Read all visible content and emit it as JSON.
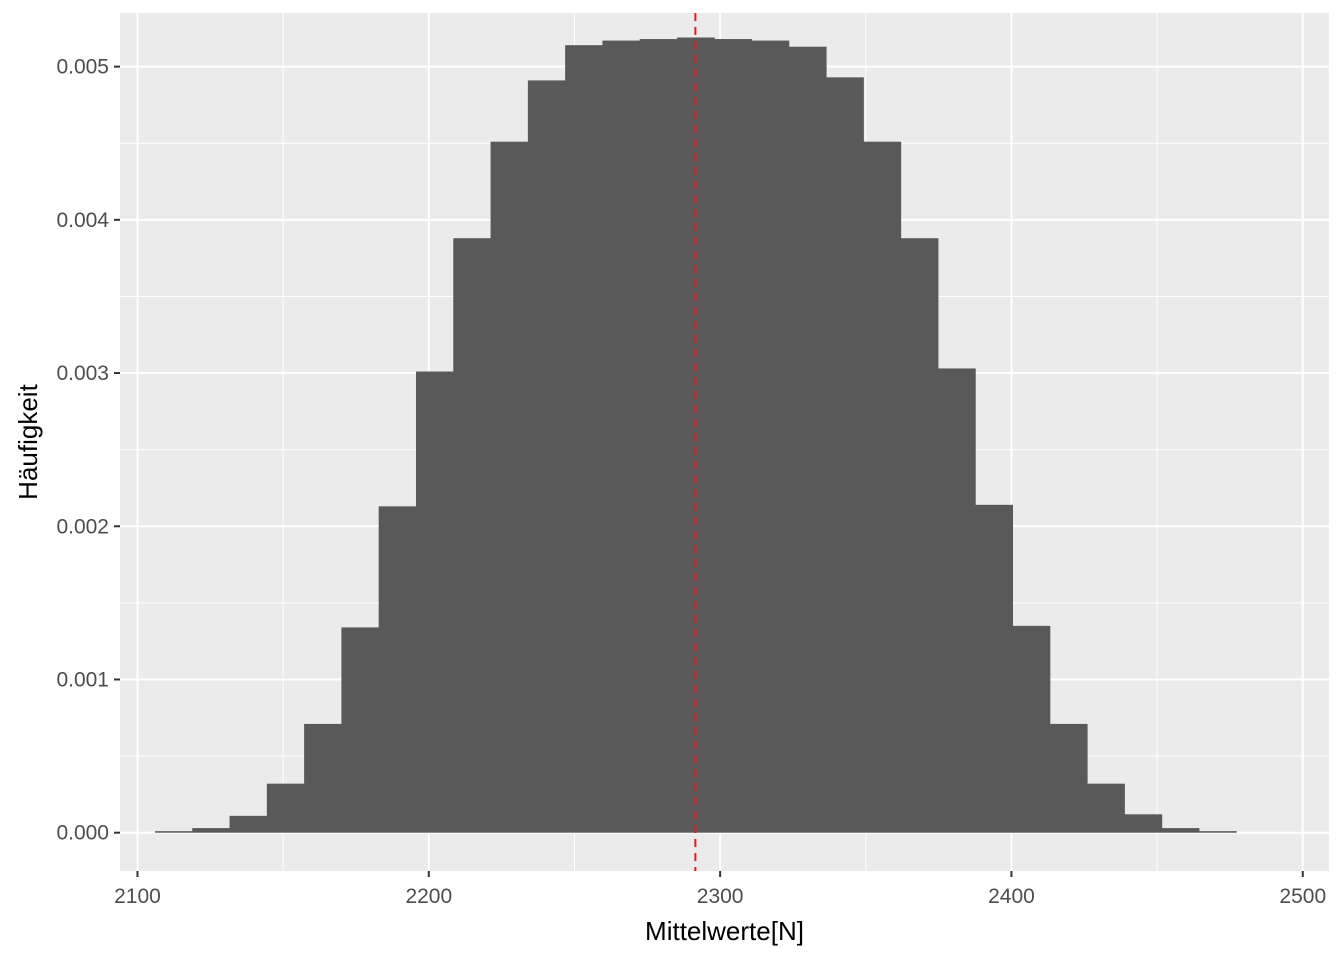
{
  "chart_data": {
    "type": "bar",
    "subtype": "histogram",
    "title": "",
    "xlabel": "Mittelwerte[N]",
    "ylabel": "Häufigkeit",
    "xlim": [
      2094,
      2509
    ],
    "ylim": [
      -0.00025,
      0.00535
    ],
    "x_ticks": [
      2100,
      2200,
      2300,
      2400,
      2500
    ],
    "x_tick_labels": [
      "2100",
      "2200",
      "2300",
      "2400",
      "2500"
    ],
    "y_ticks": [
      0,
      0.001,
      0.002,
      0.003,
      0.004,
      0.005
    ],
    "y_tick_labels": [
      "0.000",
      "0.001",
      "0.002",
      "0.003",
      "0.004",
      "0.005"
    ],
    "bin_start": 2106,
    "bin_width": 12.8,
    "values": [
      1e-05,
      3e-05,
      0.00011,
      0.00032,
      0.00071,
      0.00134,
      0.00213,
      0.00301,
      0.00388,
      0.00451,
      0.00491,
      0.00514,
      0.00517,
      0.00518,
      0.00519,
      0.00518,
      0.00517,
      0.00513,
      0.00493,
      0.00451,
      0.00388,
      0.00303,
      0.00214,
      0.00135,
      0.00071,
      0.00032,
      0.00012,
      3e-05,
      1e-05
    ],
    "mean_line": 2291.5,
    "grid": true,
    "colors": {
      "panel": "#ebebeb",
      "grid": "#ffffff",
      "bar": "#595959",
      "mean_line": "#e41a1c",
      "tick_text": "#4d4d4d",
      "tick_mark": "#333333"
    }
  }
}
